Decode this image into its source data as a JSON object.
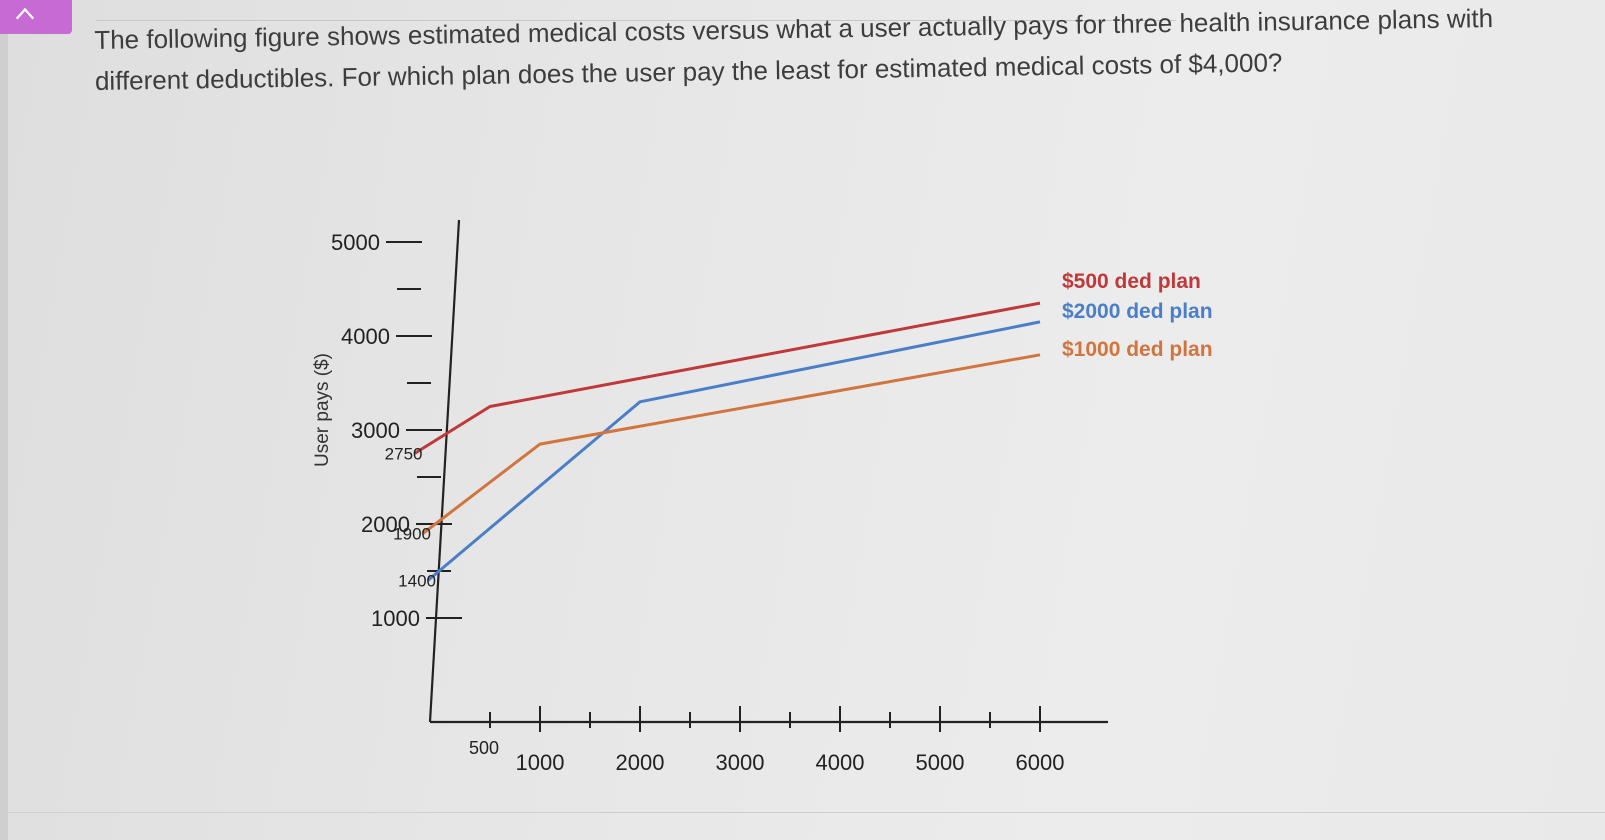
{
  "question": {
    "text": "The following figure shows estimated medical costs versus what a user actually pays for three health insurance plans with different deductibles. For which plan does the user pay the least for estimated medical costs of $4,000?"
  },
  "icons": {
    "nav": "chevron-up-icon"
  },
  "chart_data": {
    "type": "line",
    "title": "",
    "xlabel": "",
    "ylabel": "User pays ($)",
    "xlim": [
      0,
      6500
    ],
    "ylim": [
      500,
      5500
    ],
    "grid": false,
    "legend": "right-end-of-lines",
    "x_ticks": [
      500,
      1000,
      2000,
      3000,
      4000,
      5000,
      6000
    ],
    "x_tick_labels": [
      "500",
      "1000",
      "2000",
      "3000",
      "4000",
      "5000",
      "6000"
    ],
    "y_ticks": [
      1000,
      2000,
      3000,
      4000,
      5000
    ],
    "y_tick_labels": [
      "1000",
      "2000",
      "3000",
      "4000",
      "5000"
    ],
    "y_special_labels": [
      {
        "value": 2750,
        "label": "2750"
      },
      {
        "value": 1900,
        "label": "1900"
      },
      {
        "value": 1400,
        "label": "1400"
      }
    ],
    "series": [
      {
        "name": "$500 ded plan",
        "color": "#c0393a",
        "x": [
          0,
          500,
          6000
        ],
        "y": [
          2750,
          3250,
          4350
        ]
      },
      {
        "name": "$2000 ded plan",
        "color": "#4a7fc8",
        "x": [
          0,
          2000,
          6000
        ],
        "y": [
          1400,
          3300,
          4150
        ]
      },
      {
        "name": "$1000 ded plan",
        "color": "#d2743e",
        "x": [
          0,
          1000,
          6000
        ],
        "y": [
          1900,
          2850,
          3800
        ]
      }
    ]
  }
}
